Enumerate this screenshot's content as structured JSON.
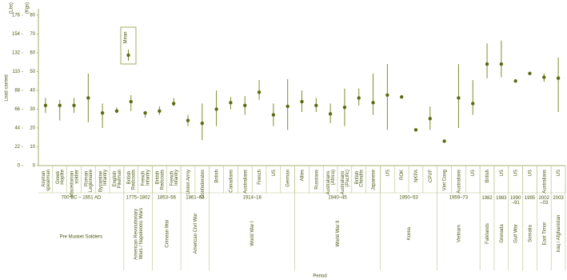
{
  "chart_data": {
    "type": "dot-range",
    "y_label": "Load carried",
    "y_unit": "(Kgs)",
    "y2_unit": "(Lbs)",
    "x_label": "Period",
    "legend_label": "Mean",
    "categories": [
      "Asyrian spearman",
      "Greek Hoplite",
      "Macedonian soldier",
      "Roman Legionaire",
      "Byzantine Infantry",
      "English Pikeman",
      "British Redcoats",
      "French Infantry",
      "British Redcoats",
      "French Infantry",
      "Union Army",
      "Confederates",
      "British",
      "Canadians",
      "Australians",
      "French",
      "US",
      "German",
      "Allies",
      "Russians",
      "Australians (Africa)",
      "Australians (Pacific)",
      "British Chindits",
      "Japanese",
      "US",
      "ROK",
      "NKPA",
      "CPVF",
      "Viet Cong",
      "Australians",
      "US",
      "British",
      "US",
      "US",
      "US",
      "Australians",
      "US"
    ],
    "values": [
      32,
      32,
      32,
      36,
      28,
      29,
      34,
      28,
      29,
      33,
      24,
      22.5,
      30,
      33.5,
      32,
      39,
      27,
      31.5,
      34,
      32,
      27.5,
      31,
      36,
      33.5,
      37.5,
      36.5,
      19,
      25,
      13,
      36,
      33,
      54,
      54,
      45,
      49,
      47,
      46.5
    ],
    "low": [
      28,
      24,
      28,
      23,
      20,
      28,
      29,
      25.5,
      27,
      31.5,
      21,
      13.5,
      21,
      30,
      27,
      35,
      21,
      19,
      28.5,
      28.5,
      22.5,
      21,
      32,
      27,
      19,
      null,
      null,
      19,
      null,
      20,
      27,
      46.5,
      47,
      null,
      null,
      44.5,
      28.5
    ],
    "high": [
      36,
      35,
      36,
      49,
      33,
      31,
      37.5,
      29,
      31.5,
      36,
      27,
      33,
      40,
      36.5,
      37,
      45.5,
      33,
      46,
      40,
      36,
      33,
      41,
      41,
      49,
      54,
      null,
      null,
      31.5,
      null,
      54,
      45.5,
      65,
      66.5,
      null,
      null,
      49,
      57.5
    ],
    "groups": [
      {
        "years": "700 BC – 1651 AD",
        "name": "Pre Musket Soldiers",
        "span": [
          0,
          5
        ]
      },
      {
        "years": "1775–1802",
        "name": "American Revolutionary Wars / Napoleonic Wars",
        "span": [
          6,
          7
        ]
      },
      {
        "years": "1853–56",
        "name": "Crimean War",
        "span": [
          8,
          9
        ]
      },
      {
        "years": "1861–65",
        "name": "American Civil War",
        "span": [
          10,
          11
        ]
      },
      {
        "years": "1914–18",
        "name": "World War I",
        "span": [
          12,
          17
        ]
      },
      {
        "years": "1940–45",
        "name": "World War II",
        "span": [
          18,
          23
        ]
      },
      {
        "years": "1950–53",
        "name": "Korea",
        "span": [
          24,
          27
        ]
      },
      {
        "years": "1959–73",
        "name": "Vietnam",
        "span": [
          28,
          30
        ]
      },
      {
        "years": "1982",
        "name": "Falklands",
        "span": [
          31,
          31
        ]
      },
      {
        "years": "1983",
        "name": "Grenada",
        "span": [
          32,
          32
        ]
      },
      {
        "years": "1990–91",
        "name": "Gulf War",
        "span": [
          33,
          33
        ]
      },
      {
        "years": "1995",
        "name": "Somalia",
        "span": [
          34,
          34
        ]
      },
      {
        "years": "2002–03",
        "name": "East Timor",
        "span": [
          35,
          35
        ]
      },
      {
        "years": "2003",
        "name": "Iraq / Afghanistan",
        "span": [
          36,
          36
        ]
      }
    ],
    "color": "#5b6c12",
    "bar_color": "#7d8f2b",
    "ylim": [
      0,
      80
    ],
    "yticks": [
      0,
      10,
      20,
      30,
      40,
      50,
      60,
      70,
      80
    ],
    "y2lim": [
      0,
      176
    ],
    "y2ticks": [
      0,
      22,
      44,
      66,
      88,
      110,
      132,
      154,
      176
    ]
  }
}
